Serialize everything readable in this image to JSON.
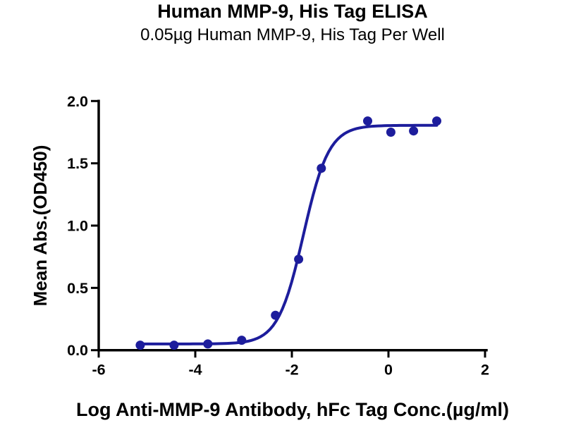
{
  "chart_data": {
    "type": "scatter",
    "title": "Human MMP-9, His Tag ELISA",
    "subtitle": "0.05µg Human MMP-9, His Tag Per Well",
    "xlabel": "Log Anti-MMP-9 Antibody, hFc Tag Conc.(µg/ml)",
    "ylabel": "Mean Abs.(OD450)",
    "xlim": [
      -6,
      2
    ],
    "ylim": [
      0,
      2
    ],
    "x_ticks": [
      -6,
      -4,
      -2,
      0,
      2
    ],
    "x_tick_labels": [
      "-6",
      "-4",
      "-2",
      "0",
      "2"
    ],
    "y_ticks": [
      0,
      0.5,
      1,
      1.5,
      2
    ],
    "y_tick_labels": [
      "0.0",
      "0.5",
      "1.0",
      "1.5",
      "2.0"
    ],
    "grid": false,
    "legend": "none",
    "series": [
      {
        "name": "Anti-MMP-9 Antibody, hFc Tag",
        "color": "#1d1d9c",
        "marker": "circle",
        "points": [
          {
            "x": -5.14,
            "y": 0.04
          },
          {
            "x": -4.44,
            "y": 0.04
          },
          {
            "x": -3.74,
            "y": 0.05
          },
          {
            "x": -3.04,
            "y": 0.08
          },
          {
            "x": -2.34,
            "y": 0.28
          },
          {
            "x": -1.86,
            "y": 0.73
          },
          {
            "x": -1.39,
            "y": 1.46
          },
          {
            "x": -0.43,
            "y": 1.84
          },
          {
            "x": 0.05,
            "y": 1.75
          },
          {
            "x": 0.52,
            "y": 1.76
          },
          {
            "x": 1.0,
            "y": 1.84
          }
        ]
      }
    ],
    "fit_curve": {
      "model": "4PL",
      "bottom": 0.05,
      "top": 1.805,
      "logEC50": -1.76,
      "hill": 1.65,
      "x_range": [
        -5.14,
        1.0
      ],
      "color": "#1d1d9c"
    }
  },
  "colors": {
    "accent": "#1d1d9c",
    "axis": "#000000",
    "background": "#ffffff"
  }
}
